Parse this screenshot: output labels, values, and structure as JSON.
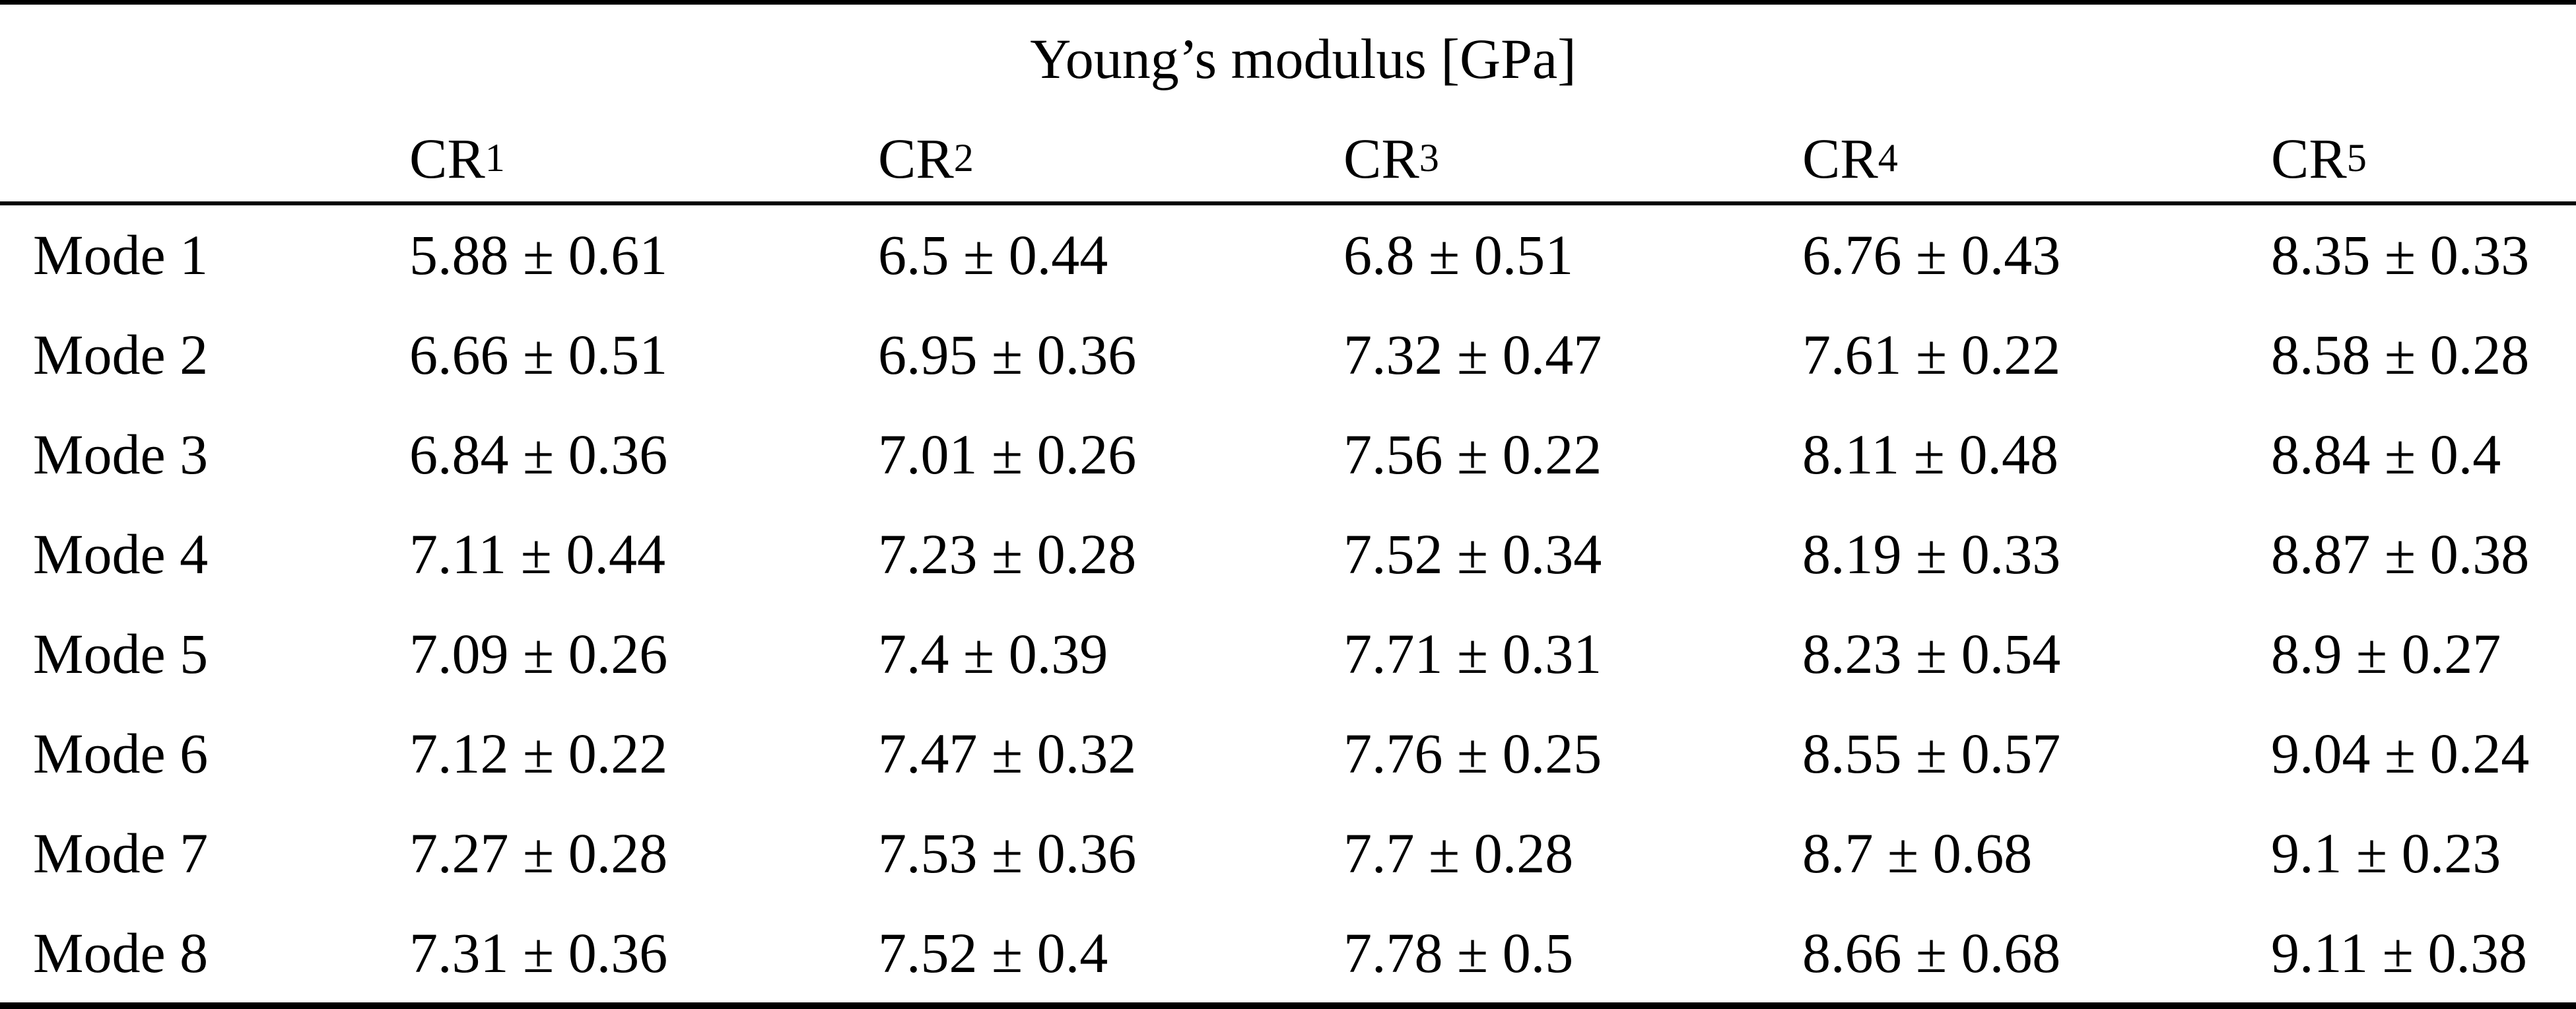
{
  "table": {
    "title": "Young’s modulus [GPa]",
    "unit": "GPa",
    "columns": [
      {
        "base": "CR",
        "sub": "1"
      },
      {
        "base": "CR",
        "sub": "2"
      },
      {
        "base": "CR",
        "sub": "3"
      },
      {
        "base": "CR",
        "sub": "4"
      },
      {
        "base": "CR",
        "sub": "5"
      }
    ],
    "rows": [
      {
        "label": "Mode 1",
        "values": [
          "5.88 ± 0.61",
          "6.5 ± 0.44",
          "6.8 ± 0.51",
          "6.76 ± 0.43",
          "8.35 ± 0.33"
        ]
      },
      {
        "label": "Mode 2",
        "values": [
          "6.66 ± 0.51",
          "6.95 ± 0.36",
          "7.32 ± 0.47",
          "7.61 ± 0.22",
          "8.58 ± 0.28"
        ]
      },
      {
        "label": "Mode 3",
        "values": [
          "6.84 ± 0.36",
          "7.01 ± 0.26",
          "7.56 ± 0.22",
          "8.11 ± 0.48",
          "8.84 ± 0.4"
        ]
      },
      {
        "label": "Mode 4",
        "values": [
          "7.11 ± 0.44",
          "7.23 ± 0.28",
          "7.52 ± 0.34",
          "8.19 ± 0.33",
          "8.87 ± 0.38"
        ]
      },
      {
        "label": "Mode 5",
        "values": [
          "7.09 ± 0.26",
          "7.4 ± 0.39",
          "7.71 ± 0.31",
          "8.23 ± 0.54",
          "8.9 ± 0.27"
        ]
      },
      {
        "label": "Mode 6",
        "values": [
          "7.12 ± 0.22",
          "7.47 ± 0.32",
          "7.76 ± 0.25",
          "8.55 ± 0.57",
          "9.04 ± 0.24"
        ]
      },
      {
        "label": "Mode 7",
        "values": [
          "7.27 ± 0.28",
          "7.53 ± 0.36",
          "7.7 ± 0.28",
          "8.7 ± 0.68",
          "9.1 ± 0.23"
        ]
      },
      {
        "label": "Mode 8",
        "values": [
          "7.31 ± 0.36",
          "7.52 ± 0.4",
          "7.78 ± 0.5",
          "8.66 ± 0.68",
          "9.11 ± 0.38"
        ]
      }
    ]
  },
  "colors": {
    "text": "#000000",
    "background": "#ffffff",
    "rule": "#000000"
  }
}
